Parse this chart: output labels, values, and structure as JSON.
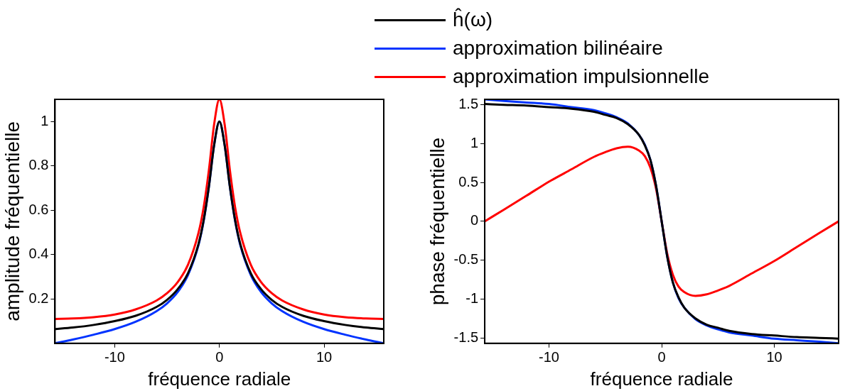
{
  "chart_data": [
    {
      "type": "line",
      "xlabel": "fréquence radiale",
      "ylabel": "amplitude fréquentielle",
      "legend": "top",
      "marker": "none",
      "line_style": "solid",
      "grid": false,
      "x": [
        -15.7,
        -14,
        -12,
        -10,
        -8,
        -6,
        -5,
        -4,
        -3,
        -2,
        -1.5,
        -1,
        -0.5,
        0,
        0.5,
        1,
        1.5,
        2,
        3,
        4,
        5,
        6,
        8,
        10,
        12,
        14,
        15.7
      ],
      "xlim": [
        -15.7,
        15.7
      ],
      "xticks": [
        -10,
        0,
        10
      ],
      "ylim": [
        0,
        1.1
      ],
      "yticks": [
        0.2,
        0.4,
        0.6,
        0.8,
        1
      ],
      "series": [
        {
          "name": "ĥ(ω)",
          "color": "#000000",
          "values": [
            0.064,
            0.071,
            0.083,
            0.1,
            0.124,
            0.164,
            0.196,
            0.243,
            0.316,
            0.447,
            0.555,
            0.707,
            0.894,
            1,
            0.894,
            0.707,
            0.555,
            0.447,
            0.316,
            0.243,
            0.196,
            0.164,
            0.124,
            0.1,
            0.083,
            0.071,
            0.064
          ]
        },
        {
          "name": "approximation bilinéaire",
          "color": "#0033ff",
          "values": [
            0,
            0.017,
            0.039,
            0.064,
            0.097,
            0.145,
            0.18,
            0.23,
            0.308,
            0.442,
            0.552,
            0.706,
            0.894,
            1,
            0.894,
            0.706,
            0.552,
            0.442,
            0.308,
            0.23,
            0.18,
            0.145,
            0.097,
            0.064,
            0.039,
            0.017,
            0
          ]
        },
        {
          "name": "approximation impulsionnelle",
          "color": "#ff0000",
          "values": [
            0.11,
            0.112,
            0.118,
            0.13,
            0.153,
            0.193,
            0.226,
            0.275,
            0.354,
            0.497,
            0.614,
            0.782,
            0.988,
            1.1,
            0.988,
            0.782,
            0.614,
            0.497,
            0.354,
            0.275,
            0.226,
            0.193,
            0.153,
            0.13,
            0.118,
            0.112,
            0.11
          ]
        }
      ]
    },
    {
      "type": "line",
      "xlabel": "fréquence radiale",
      "ylabel": "phase fréquentielle",
      "marker": "none",
      "line_style": "solid",
      "grid": false,
      "x": [
        -15.7,
        -14,
        -12,
        -10,
        -8,
        -6,
        -5,
        -4,
        -3,
        -2,
        -1.5,
        -1,
        -0.5,
        0,
        0.5,
        1,
        1.5,
        2,
        3,
        4,
        5,
        6,
        8,
        10,
        12,
        14,
        15.7
      ],
      "xlim": [
        -15.7,
        15.7
      ],
      "xticks": [
        -10,
        0,
        10
      ],
      "ylim": [
        -1.57,
        1.57
      ],
      "yticks": [
        -1.5,
        -1,
        -0.5,
        0,
        0.5,
        1,
        1.5
      ],
      "series": [
        {
          "color": "#000000",
          "values": [
            1.51,
            1.5,
            1.49,
            1.47,
            1.45,
            1.41,
            1.37,
            1.33,
            1.25,
            1.11,
            0.98,
            0.79,
            0.46,
            0,
            -0.46,
            -0.79,
            -0.98,
            -1.11,
            -1.25,
            -1.33,
            -1.37,
            -1.41,
            -1.45,
            -1.47,
            -1.49,
            -1.5,
            -1.51
          ]
        },
        {
          "color": "#0033ff",
          "values": [
            1.57,
            1.55,
            1.53,
            1.51,
            1.47,
            1.43,
            1.39,
            1.34,
            1.26,
            1.11,
            0.99,
            0.79,
            0.46,
            0,
            -0.46,
            -0.79,
            -0.99,
            -1.11,
            -1.26,
            -1.34,
            -1.39,
            -1.43,
            -1.47,
            -1.51,
            -1.53,
            -1.55,
            -1.57
          ]
        },
        {
          "color": "#ff0000",
          "values": [
            0,
            0.15,
            0.33,
            0.51,
            0.67,
            0.83,
            0.89,
            0.94,
            0.96,
            0.91,
            0.84,
            0.69,
            0.42,
            0,
            -0.42,
            -0.69,
            -0.84,
            -0.91,
            -0.96,
            -0.94,
            -0.89,
            -0.83,
            -0.67,
            -0.51,
            -0.33,
            -0.15,
            0
          ]
        }
      ]
    }
  ]
}
